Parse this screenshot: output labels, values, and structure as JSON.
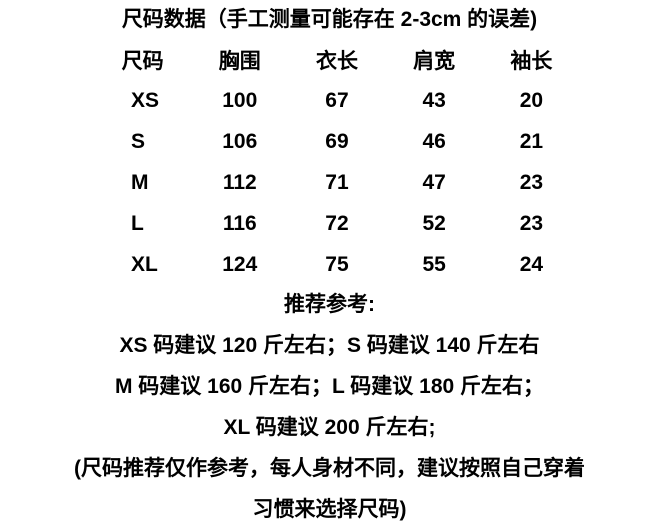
{
  "page": {
    "title": "尺码数据（手工测量可能存在 2-3cm 的误差)"
  },
  "size_table": {
    "headers": [
      "尺码",
      "胸围",
      "衣长",
      "肩宽",
      "袖长"
    ],
    "rows": [
      {
        "size": "XS",
        "chest": "100",
        "length": "67",
        "shoulder": "43",
        "sleeve": "20"
      },
      {
        "size": "S",
        "chest": "106",
        "length": "69",
        "shoulder": "46",
        "sleeve": "21"
      },
      {
        "size": "M",
        "chest": "112",
        "length": "71",
        "shoulder": "47",
        "sleeve": "23"
      },
      {
        "size": "L",
        "chest": "116",
        "length": "72",
        "shoulder": "52",
        "sleeve": "23"
      },
      {
        "size": "XL",
        "chest": "124",
        "length": "75",
        "shoulder": "55",
        "sleeve": "24"
      }
    ]
  },
  "recommendation": {
    "heading": "推荐参考:",
    "lines": [
      "XS 码建议 120 斤左右；S 码建议 140 斤左右",
      "M 码建议 160 斤左右；L 码建议 180 斤左右；",
      "XL 码建议 200 斤左右;"
    ],
    "note_lines": [
      "(尺码推荐仅作参考，每人身材不同，建议按照自己穿着",
      "习惯来选择尺码)"
    ]
  },
  "colors": {
    "background": "#ffffff",
    "text": "#000000"
  }
}
